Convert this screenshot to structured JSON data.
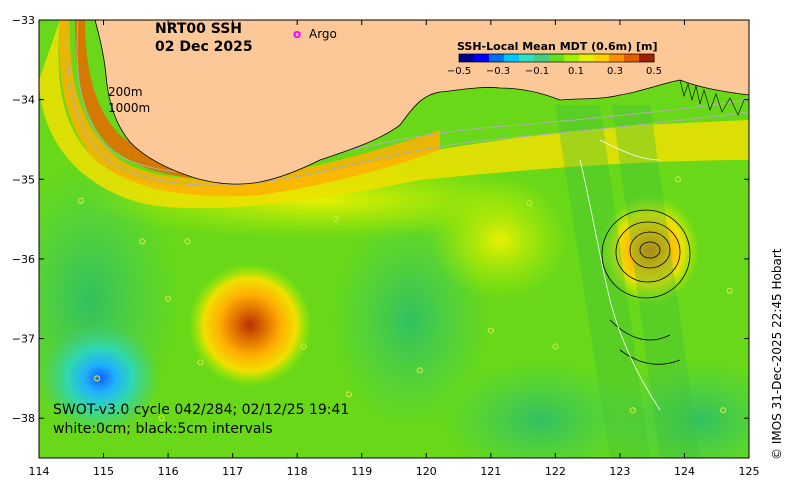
{
  "title": {
    "line1": "NRT00 SSH",
    "line2": "02 Dec 2025"
  },
  "legend": {
    "argo_symbol": "o",
    "argo_label": "Argo",
    "argo_color": "#ff00ff"
  },
  "depth_labels": {
    "d200": "200m",
    "d1000": "1000m"
  },
  "colorbar": {
    "title": "SSH-Local Mean MDT (0.6m) [m]",
    "ticks": [
      "−0.5",
      "−0.3",
      "−0.1",
      "0.1",
      "0.3",
      "0.5"
    ],
    "colors": [
      "#00008f",
      "#0000ff",
      "#0070ff",
      "#00c8ff",
      "#30e0c0",
      "#40d080",
      "#60e020",
      "#a0f000",
      "#e0f000",
      "#ffd000",
      "#ff9000",
      "#e06000",
      "#a02000"
    ]
  },
  "annotation": {
    "line1": "SWOT-v3.0 cycle 042/284; 02/12/25 19:41",
    "line2": "white:0cm; black:5cm intervals"
  },
  "credit": "© IMOS 31-Dec-2025 22:45 Hobart",
  "axes": {
    "x_ticks": [
      "114",
      "115",
      "116",
      "117",
      "118",
      "119",
      "120",
      "121",
      "122",
      "123",
      "124",
      "125"
    ],
    "y_ticks": [
      "−33",
      "−34",
      "−35",
      "−36",
      "−37",
      "−38"
    ]
  },
  "colors": {
    "land": "#fcc898",
    "ocean_base": "#68d818"
  },
  "map_data": {
    "lon_range": [
      114,
      125
    ],
    "lat_range": [
      -38.5,
      -33
    ]
  }
}
